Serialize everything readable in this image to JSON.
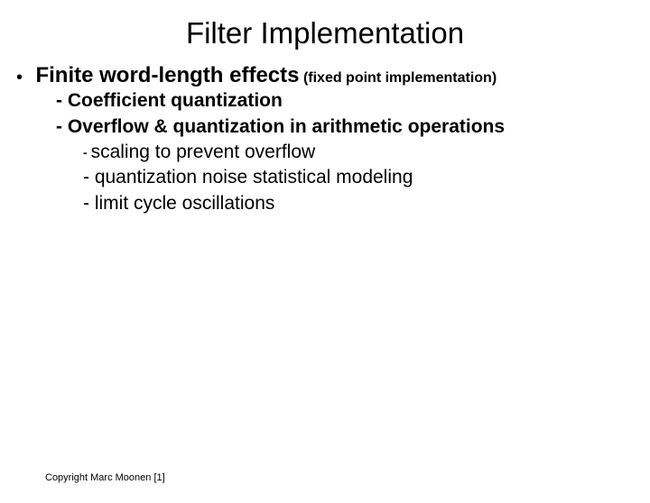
{
  "title": "Filter Implementation",
  "bullet": {
    "main": "Finite word-length effects",
    "sub": "(fixed point implementation)"
  },
  "level2": {
    "item1": "- Coefficient  quantization",
    "item2": "- Overflow & quantization in arithmetic operations"
  },
  "level3": {
    "item1": "scaling to prevent overflow",
    "item2": "- quantization noise statistical modeling",
    "item3": "- limit cycle oscillations"
  },
  "copyright": "Copyright Marc Moonen [1]"
}
